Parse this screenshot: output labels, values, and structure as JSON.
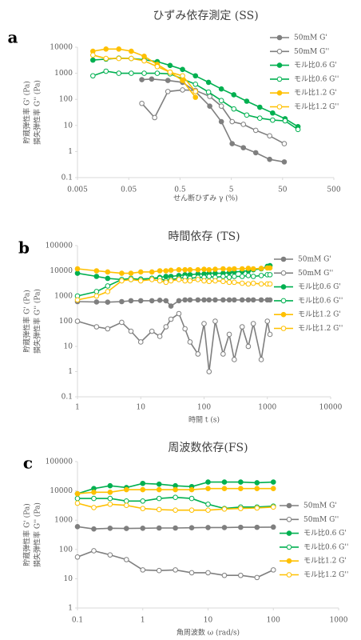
{
  "chart_data": [
    {
      "type": "line",
      "panel_label": "a",
      "title": "ひずみ依存測定 (SS)",
      "xlabel": "せん断ひずみ γ (%)",
      "ylabel": [
        "貯蔵弾性率 G' (Pa)",
        "損失弾性率 G'' (Pa)"
      ],
      "xscale": "log",
      "yscale": "log",
      "xlim": [
        0.005,
        500
      ],
      "ylim": [
        0.1,
        10000
      ],
      "xticks": [
        0.005,
        0.05,
        0.5,
        5,
        50,
        500
      ],
      "yticks": [
        0.1,
        1,
        10,
        100,
        1000,
        10000
      ],
      "grid": false,
      "legend": "right",
      "series": [
        {
          "name": "50mM G'",
          "color": "#7f7f7f",
          "marker": "filled",
          "x": [
            0.09,
            0.14,
            0.29,
            0.56,
            1,
            1.9,
            3.2,
            5.2,
            8.6,
            15,
            28,
            54
          ],
          "values": [
            570,
            600,
            530,
            450,
            200,
            55,
            14,
            2,
            1.4,
            0.9,
            0.5,
            0.4
          ]
        },
        {
          "name": "50mM G''",
          "color": "#7f7f7f",
          "marker": "open",
          "x": [
            0.09,
            0.16,
            0.29,
            0.56,
            1,
            1.9,
            3.2,
            5.2,
            8.6,
            15,
            28,
            54
          ],
          "values": [
            70,
            20,
            200,
            230,
            220,
            130,
            55,
            14,
            11,
            6.5,
            4,
            2
          ]
        },
        {
          "name": "モル比0.6 G'",
          "color": "#00b050",
          "marker": "filled",
          "x": [
            0.01,
            0.018,
            0.032,
            0.056,
            0.1,
            0.18,
            0.32,
            0.56,
            1,
            1.8,
            3.2,
            5.6,
            10,
            18,
            32,
            56,
            100
          ],
          "values": [
            3200,
            3500,
            3800,
            3700,
            3300,
            2800,
            2000,
            1400,
            800,
            450,
            250,
            150,
            85,
            50,
            30,
            18,
            9
          ]
        },
        {
          "name": "モル比0.6 G''",
          "color": "#00b050",
          "marker": "open",
          "x": [
            0.01,
            0.018,
            0.032,
            0.056,
            0.1,
            0.18,
            0.32,
            0.56,
            1,
            1.8,
            3.2,
            5.6,
            10,
            18,
            32,
            56,
            100
          ],
          "values": [
            800,
            1200,
            1000,
            1000,
            1000,
            1000,
            950,
            600,
            380,
            190,
            90,
            43,
            25,
            19,
            16,
            15,
            7
          ]
        },
        {
          "name": "モル比1.2 G'",
          "color": "#ffc000",
          "marker": "filled",
          "x": [
            0.01,
            0.018,
            0.032,
            0.056,
            0.1,
            0.18,
            0.32,
            0.56,
            1
          ],
          "values": [
            7000,
            8500,
            8500,
            7000,
            4500,
            2200,
            1100,
            530,
            120
          ]
        },
        {
          "name": "モル比1.2 G''",
          "color": "#ffc000",
          "marker": "open",
          "x": [
            0.01,
            0.018,
            0.032,
            0.056,
            0.1,
            0.18,
            0.32,
            0.56,
            1
          ],
          "values": [
            5000,
            3700,
            3700,
            3700,
            3000,
            1800,
            1100,
            800,
            200
          ]
        }
      ]
    },
    {
      "type": "line",
      "panel_label": "b",
      "title": "時間依存 (TS)",
      "xlabel": "時間 t (s)",
      "ylabel": [
        "貯蔵弾性率 G' (Pa)",
        "損失弾性率 G'' (Pa)"
      ],
      "xscale": "log",
      "yscale": "log",
      "xlim": [
        1,
        10000
      ],
      "ylim": [
        0.1,
        100000
      ],
      "xticks": [
        1,
        10,
        100,
        1000,
        10000
      ],
      "yticks": [
        0.1,
        1,
        10,
        100,
        1000,
        10000,
        100000
      ],
      "grid": false,
      "legend": "right",
      "series": [
        {
          "name": "50mM G'",
          "color": "#7f7f7f",
          "marker": "filled",
          "x": [
            1,
            2,
            3,
            5,
            7,
            10,
            15,
            20,
            25,
            30,
            40,
            50,
            60,
            80,
            100,
            120,
            150,
            200,
            250,
            300,
            400,
            500,
            600,
            800,
            1000,
            1100
          ],
          "values": [
            600,
            580,
            570,
            600,
            650,
            650,
            650,
            680,
            650,
            400,
            650,
            700,
            700,
            700,
            700,
            700,
            700,
            700,
            700,
            700,
            700,
            700,
            700,
            700,
            700,
            700
          ]
        },
        {
          "name": "50mM G''",
          "color": "#7f7f7f",
          "marker": "open",
          "x": [
            1,
            2,
            3,
            5,
            7,
            10,
            15,
            20,
            25,
            30,
            40,
            50,
            60,
            80,
            100,
            120,
            150,
            200,
            250,
            300,
            400,
            500,
            600,
            800,
            1000,
            1100
          ],
          "values": [
            100,
            60,
            50,
            90,
            40,
            15,
            40,
            25,
            60,
            120,
            200,
            50,
            15,
            5,
            80,
            1,
            100,
            5,
            30,
            3,
            60,
            10,
            80,
            3,
            100,
            30
          ]
        },
        {
          "name": "モル比0.6 G'",
          "color": "#00b050",
          "marker": "filled",
          "x": [
            1,
            2,
            3,
            5,
            7,
            10,
            15,
            20,
            25,
            30,
            40,
            50,
            60,
            80,
            100,
            120,
            150,
            200,
            250,
            300,
            400,
            500,
            600,
            800,
            1000,
            1100
          ],
          "values": [
            8000,
            6000,
            5000,
            4500,
            4500,
            4700,
            5000,
            5500,
            6000,
            6000,
            6500,
            7000,
            7000,
            7500,
            7500,
            8000,
            8000,
            8000,
            8500,
            9000,
            9500,
            10000,
            11000,
            12000,
            15000,
            16000
          ]
        },
        {
          "name": "モル比0.6 G''",
          "color": "#00b050",
          "marker": "open",
          "x": [
            1,
            2,
            3,
            5,
            7,
            10,
            15,
            20,
            25,
            30,
            40,
            50,
            60,
            80,
            100,
            120,
            150,
            200,
            250,
            300,
            400,
            500,
            600,
            800,
            1000,
            1100
          ],
          "values": [
            1000,
            1500,
            2500,
            4500,
            5000,
            4500,
            5000,
            5000,
            4000,
            4500,
            5000,
            5500,
            5000,
            5500,
            5500,
            6000,
            5500,
            6000,
            5500,
            6000,
            6000,
            6500,
            6000,
            6500,
            7000,
            7000
          ]
        },
        {
          "name": "モル比1.2 G'",
          "color": "#ffc000",
          "marker": "filled",
          "x": [
            1,
            2,
            3,
            5,
            7,
            10,
            15,
            20,
            25,
            30,
            40,
            50,
            60,
            80,
            100,
            120,
            150,
            200,
            250,
            300,
            400,
            500,
            600,
            800,
            1000,
            1100
          ],
          "values": [
            12000,
            10000,
            9000,
            8000,
            8000,
            9000,
            9000,
            10000,
            10000,
            10500,
            11000,
            11000,
            11000,
            11000,
            11500,
            11000,
            11500,
            12000,
            11500,
            12000,
            12000,
            12500,
            12000,
            12500,
            13000,
            13000
          ]
        },
        {
          "name": "モル比1.2 G''",
          "color": "#ffc000",
          "marker": "open",
          "x": [
            1,
            2,
            3,
            5,
            7,
            10,
            15,
            20,
            25,
            30,
            40,
            50,
            60,
            80,
            100,
            120,
            150,
            200,
            250,
            300,
            400,
            500,
            600,
            800,
            1000,
            1100
          ],
          "values": [
            700,
            1000,
            1500,
            4000,
            4500,
            4000,
            4500,
            4000,
            3500,
            4000,
            4500,
            4000,
            4000,
            4500,
            4000,
            3800,
            4000,
            3800,
            3500,
            3500,
            3200,
            3000,
            3200,
            3000,
            3000,
            3000
          ]
        }
      ]
    },
    {
      "type": "line",
      "panel_label": "c",
      "title": "周波数依存(FS)",
      "xlabel": "角周波数 ω (rad/s)",
      "ylabel": [
        "貯蔵弾性率 G' (Pa)",
        "損失弾性率 G'' (Pa)"
      ],
      "xscale": "log",
      "yscale": "log",
      "xlim": [
        0.1,
        1000
      ],
      "ylim": [
        1,
        100000
      ],
      "xticks": [
        0.1,
        1,
        10,
        100,
        1000
      ],
      "yticks": [
        1,
        10,
        100,
        1000,
        10000,
        100000
      ],
      "grid": false,
      "legend": "right",
      "series": [
        {
          "name": "50mM G'",
          "color": "#7f7f7f",
          "marker": "filled",
          "x": [
            0.1,
            0.178,
            0.316,
            0.562,
            1,
            1.78,
            3.16,
            5.62,
            10,
            17.8,
            31.6,
            56.2,
            100
          ],
          "values": [
            600,
            500,
            530,
            520,
            530,
            540,
            540,
            550,
            560,
            560,
            570,
            570,
            580
          ]
        },
        {
          "name": "50mM G''",
          "color": "#7f7f7f",
          "marker": "open",
          "x": [
            0.1,
            0.178,
            0.316,
            0.562,
            1,
            1.78,
            3.16,
            5.62,
            10,
            17.8,
            31.6,
            56.2,
            100
          ],
          "values": [
            55,
            90,
            65,
            45,
            20,
            19,
            20,
            16,
            16,
            13,
            13,
            11,
            20
          ]
        },
        {
          "name": "モル比0.6 G'",
          "color": "#00b050",
          "marker": "filled",
          "x": [
            0.1,
            0.178,
            0.316,
            0.562,
            1,
            1.78,
            3.16,
            5.62,
            10,
            17.8,
            31.6,
            56.2,
            100
          ],
          "values": [
            8000,
            12000,
            15000,
            13000,
            18000,
            17000,
            15000,
            14000,
            20000,
            20000,
            20000,
            19000,
            20000
          ]
        },
        {
          "name": "モル比0.6 G''",
          "color": "#00b050",
          "marker": "open",
          "x": [
            0.1,
            0.178,
            0.316,
            0.562,
            1,
            1.78,
            3.16,
            5.62,
            10,
            17.8,
            31.6,
            56.2,
            100
          ],
          "values": [
            5500,
            5500,
            5500,
            4500,
            4500,
            5500,
            6000,
            5500,
            3500,
            2500,
            2800,
            2800,
            3000
          ]
        },
        {
          "name": "モル比1.2 G'",
          "color": "#ffc000",
          "marker": "filled",
          "x": [
            0.1,
            0.178,
            0.316,
            0.562,
            1,
            1.78,
            3.16,
            5.62,
            10,
            17.8,
            31.6,
            56.2,
            100
          ],
          "values": [
            8000,
            9000,
            9000,
            11000,
            11000,
            11000,
            11000,
            11000,
            12000,
            12000,
            12000,
            12000,
            12000
          ]
        },
        {
          "name": "モル比1.2 G''",
          "color": "#ffc000",
          "marker": "open",
          "x": [
            0.1,
            0.178,
            0.316,
            0.562,
            1,
            1.78,
            3.16,
            5.62,
            10,
            17.8,
            31.6,
            56.2,
            100
          ],
          "values": [
            3800,
            2700,
            3500,
            3200,
            2500,
            2300,
            2200,
            2200,
            2200,
            2400,
            2500,
            2600,
            2800
          ]
        }
      ]
    }
  ]
}
